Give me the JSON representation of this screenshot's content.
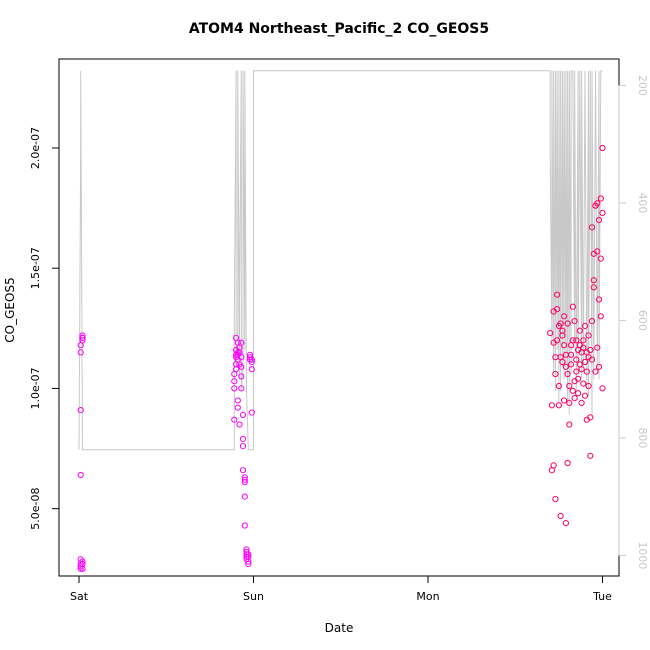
{
  "chart_data": {
    "type": "scatter",
    "title": "ATOM4 Northeast_Pacific_2 CO_GEOS5",
    "xlabel": "Date",
    "ylabel": "CO_GEOS5",
    "x_unit": "days since Sat 00:00",
    "x_ticks": [
      {
        "label": "Sat",
        "value": 0
      },
      {
        "label": "Sun",
        "value": 1
      },
      {
        "label": "Mon",
        "value": 2
      },
      {
        "label": "Tue",
        "value": 3
      }
    ],
    "y_ticks": [
      {
        "label": "5.0e-08",
        "value": 5e-08
      },
      {
        "label": "1.0e-07",
        "value": 1e-07
      },
      {
        "label": "1.5e-07",
        "value": 1.5e-07
      },
      {
        "label": "2.0e-07",
        "value": 2e-07
      }
    ],
    "ylim": [
      2.2e-08,
      2.37e-07
    ],
    "y2_ticks": [
      "200",
      "400",
      "600",
      "800",
      "1000"
    ],
    "y2_values": [
      200,
      400,
      600,
      800,
      1000
    ],
    "y2lim": [
      1035,
      155
    ],
    "y2_reversed": true,
    "grid": false,
    "pressure_color": "#c8c8c8",
    "series": [
      {
        "kind": "points",
        "color": "#ff00ff",
        "x": [
          0.01,
          0.01,
          0.01,
          0.01,
          0.01,
          0.01,
          0.01,
          0.01,
          0.02,
          0.02,
          0.02,
          0.02,
          0.02,
          0.02,
          0.02,
          0.89,
          0.89,
          0.89,
          0.89,
          0.9,
          0.9,
          0.9,
          0.9,
          0.9,
          0.9,
          0.91,
          0.91,
          0.91,
          0.91,
          0.91,
          0.91,
          0.92,
          0.92,
          0.92,
          0.92,
          0.93,
          0.93,
          0.93,
          0.93,
          0.93,
          0.94,
          0.94,
          0.94,
          0.94,
          0.95,
          0.95,
          0.95,
          0.95,
          0.95,
          0.96,
          0.96,
          0.96,
          0.96,
          0.96,
          0.97,
          0.97,
          0.97,
          0.97,
          0.98,
          0.98,
          0.98,
          0.99,
          0.99,
          0.99,
          0.99
        ],
        "y": [
          2.6e-08,
          2.5e-08,
          2.9e-08,
          2.7e-08,
          6.4e-08,
          9.1e-08,
          1.15e-07,
          1.18e-07,
          1.2e-07,
          1.22e-07,
          1.21e-07,
          2.5e-08,
          2.7e-08,
          2.8e-08,
          1.21e-07,
          8.7e-08,
          1e-07,
          1.03e-07,
          1.06e-07,
          1.14e-07,
          1.16e-07,
          1.21e-07,
          1.1e-07,
          1.13e-07,
          1.08e-07,
          1.15e-07,
          9.5e-08,
          1.12e-07,
          1.19e-07,
          1.14e-07,
          9.2e-08,
          8.5e-08,
          1.1e-07,
          1.15e-07,
          1.17e-07,
          1.09e-07,
          1.13e-07,
          1.19e-07,
          1.05e-07,
          1e-07,
          8.9e-08,
          7.9e-08,
          7.6e-08,
          6.6e-08,
          6.3e-08,
          6.2e-08,
          6.1e-08,
          5.5e-08,
          4.3e-08,
          3.3e-08,
          3.2e-08,
          3.1e-08,
          3e-08,
          2.9e-08,
          3e-08,
          2.7e-08,
          2.8e-08,
          3.1e-08,
          1.14e-07,
          1.12e-07,
          1.13e-07,
          1.11e-07,
          9e-08,
          1.08e-07,
          1.12e-07
        ]
      },
      {
        "kind": "points",
        "color": "#ff0066",
        "x": [
          2.7,
          2.71,
          2.71,
          2.72,
          2.72,
          2.72,
          2.73,
          2.73,
          2.73,
          2.74,
          2.74,
          2.74,
          2.75,
          2.75,
          2.75,
          2.76,
          2.76,
          2.76,
          2.77,
          2.77,
          2.77,
          2.78,
          2.78,
          2.78,
          2.79,
          2.79,
          2.79,
          2.8,
          2.8,
          2.8,
          2.81,
          2.81,
          2.81,
          2.82,
          2.82,
          2.82,
          2.83,
          2.83,
          2.83,
          2.84,
          2.84,
          2.84,
          2.85,
          2.85,
          2.85,
          2.86,
          2.86,
          2.86,
          2.87,
          2.87,
          2.87,
          2.88,
          2.88,
          2.88,
          2.89,
          2.89,
          2.89,
          2.9,
          2.9,
          2.9,
          2.91,
          2.91,
          2.91,
          2.92,
          2.92,
          2.92,
          2.93,
          2.93,
          2.93,
          2.94,
          2.94,
          2.94,
          2.95,
          2.95,
          2.95,
          2.96,
          2.96,
          2.96,
          2.97,
          2.97,
          2.97,
          2.98,
          2.98,
          2.98,
          2.99,
          2.99,
          2.99,
          3.0,
          3.0,
          3.0
        ],
        "y": [
          1.23e-07,
          6.6e-08,
          9.3e-08,
          1.19e-07,
          1.32e-07,
          6.8e-08,
          1.06e-07,
          1.13e-07,
          5.4e-08,
          1.33e-07,
          1.2e-07,
          1.39e-07,
          1.26e-07,
          1.01e-07,
          9.3e-08,
          1.27e-07,
          1.13e-07,
          4.7e-08,
          1.11e-07,
          1.22e-07,
          1.24e-07,
          1.18e-07,
          1.3e-07,
          9.5e-08,
          1.14e-07,
          1.09e-07,
          4.4e-08,
          1.06e-07,
          1.27e-07,
          6.9e-08,
          9.4e-08,
          1.01e-07,
          8.5e-08,
          1.18e-07,
          1.1e-07,
          1.14e-07,
          9.9e-08,
          1.2e-07,
          1.34e-07,
          1.03e-07,
          1.28e-07,
          9.6e-08,
          1.07e-07,
          1.12e-07,
          1.2e-07,
          9.8e-08,
          1.16e-07,
          1.04e-07,
          1.18e-07,
          1.1e-07,
          1.24e-07,
          1.15e-07,
          1.08e-07,
          9.4e-08,
          1.17e-07,
          1.2e-07,
          1.02e-07,
          1.11e-07,
          1.26e-07,
          9.7e-08,
          8.7e-08,
          1.15e-07,
          1.07e-07,
          1.13e-07,
          1.22e-07,
          1.01e-07,
          8.8e-08,
          7.2e-08,
          1.16e-07,
          1.12e-07,
          1.67e-07,
          1.28e-07,
          1.56e-07,
          1.45e-07,
          1.42e-07,
          1.76e-07,
          1.76e-07,
          1.07e-07,
          1.17e-07,
          1.77e-07,
          1.57e-07,
          1.09e-07,
          1.7e-07,
          1.37e-07,
          1.79e-07,
          1.3e-07,
          1.54e-07,
          1.73e-07,
          1e-07,
          2e-07
        ]
      }
    ],
    "pressure_line": {
      "color": "#c8c8c8",
      "x": [
        0.0,
        0.01,
        0.01,
        0.02,
        0.02,
        0.03,
        0.89,
        0.89,
        0.9,
        0.9,
        0.91,
        0.91,
        0.92,
        0.92,
        0.93,
        0.93,
        0.94,
        0.94,
        0.95,
        0.95,
        0.96,
        0.97,
        0.98,
        0.99,
        1.0,
        1.0,
        1.0,
        2.7,
        2.7,
        2.71,
        2.71,
        2.72,
        2.72,
        2.73,
        2.73,
        2.74,
        2.74,
        2.75,
        2.75,
        2.76,
        2.76,
        2.77,
        2.77,
        2.78,
        2.78,
        2.79,
        2.79,
        2.8,
        2.8,
        2.81,
        2.81,
        2.82,
        2.82,
        2.83,
        2.84,
        2.84,
        2.85,
        2.86,
        2.86,
        2.87,
        2.88,
        2.88,
        2.89,
        2.9,
        2.91,
        2.92,
        2.92,
        2.93,
        2.94,
        2.94,
        2.95,
        2.96,
        2.97,
        2.98,
        2.98,
        2.99,
        3.0
      ],
      "p": [
        820,
        300,
        175,
        820,
        820,
        820,
        820,
        600,
        175,
        680,
        640,
        175,
        700,
        560,
        175,
        720,
        680,
        175,
        650,
        175,
        720,
        820,
        820,
        820,
        820,
        820,
        175,
        175,
        320,
        640,
        175,
        690,
        175,
        720,
        175,
        650,
        175,
        740,
        175,
        720,
        175,
        680,
        175,
        700,
        175,
        680,
        175,
        740,
        175,
        760,
        175,
        690,
        175,
        175,
        640,
        175,
        720,
        175,
        690,
        175,
        700,
        175,
        680,
        175,
        720,
        175,
        730,
        175,
        760,
        175,
        700,
        175,
        680,
        175,
        700,
        175,
        175
      ]
    }
  }
}
